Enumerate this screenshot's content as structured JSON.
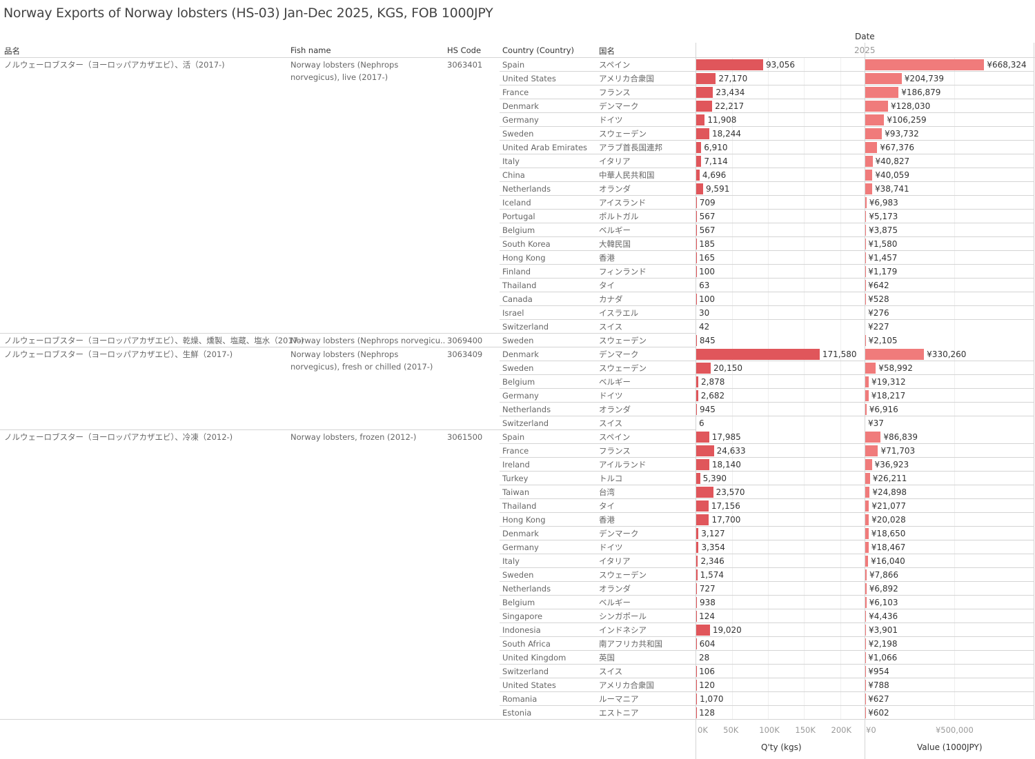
{
  "title": "Norway Exports of Norway lobsters (HS-03) Jan-Dec 2025, KGS, FOB 1000JPY",
  "headers": {
    "item": "品名",
    "fish": "Fish name",
    "hs": "HS Code",
    "country": "Country (Country)",
    "jp": "国名",
    "date": "Date",
    "year": "2025"
  },
  "axes": {
    "qty_title": "Q'ty (kgs)",
    "value_title": "Value (1000JPY)",
    "qty_ticks": [
      "0K",
      "50K",
      "100K",
      "150K",
      "200K"
    ],
    "qty_tick_values": [
      0,
      50000,
      100000,
      150000,
      200000
    ],
    "value_ticks": [
      "¥0",
      "¥500,000"
    ],
    "value_tick_values": [
      0,
      500000
    ],
    "qty_max": 235000,
    "value_max": 950000
  },
  "colors": {
    "qty": "#e0565b",
    "value": "#f07b7b"
  },
  "chart_data": {
    "type": "bar",
    "title": "Norway Exports of Norway lobsters (HS-03) Jan-Dec 2025, KGS, FOB 1000JPY",
    "series": [
      "Q'ty (kgs)",
      "Value (1000JPY)"
    ],
    "groups": [
      {
        "item": "ノルウェーロブスター（ヨーロッパアカザエビ）、活（2017-)",
        "fish": "Norway lobsters (Nephrops norvegicus), live (2017-)",
        "hs": "3063401",
        "rows": [
          [
            "Spain",
            "スペイン",
            93056,
            "93,056",
            668324,
            "¥668,324"
          ],
          [
            "United States",
            "アメリカ合衆国",
            27170,
            "27,170",
            204739,
            "¥204,739"
          ],
          [
            "France",
            "フランス",
            23434,
            "23,434",
            186879,
            "¥186,879"
          ],
          [
            "Denmark",
            "デンマーク",
            22217,
            "22,217",
            128030,
            "¥128,030"
          ],
          [
            "Germany",
            "ドイツ",
            11908,
            "11,908",
            106259,
            "¥106,259"
          ],
          [
            "Sweden",
            "スウェーデン",
            18244,
            "18,244",
            93732,
            "¥93,732"
          ],
          [
            "United Arab Emirates",
            "アラブ首長国連邦",
            6910,
            "6,910",
            67376,
            "¥67,376"
          ],
          [
            "Italy",
            "イタリア",
            7114,
            "7,114",
            40827,
            "¥40,827"
          ],
          [
            "China",
            "中華人民共和国",
            4696,
            "4,696",
            40059,
            "¥40,059"
          ],
          [
            "Netherlands",
            "オランダ",
            9591,
            "9,591",
            38741,
            "¥38,741"
          ],
          [
            "Iceland",
            "アイスランド",
            709,
            "709",
            6983,
            "¥6,983"
          ],
          [
            "Portugal",
            "ポルトガル",
            567,
            "567",
            5173,
            "¥5,173"
          ],
          [
            "Belgium",
            "ベルギー",
            567,
            "567",
            3875,
            "¥3,875"
          ],
          [
            "South Korea",
            "大韓民国",
            185,
            "185",
            1580,
            "¥1,580"
          ],
          [
            "Hong Kong",
            "香港",
            165,
            "165",
            1457,
            "¥1,457"
          ],
          [
            "Finland",
            "フィンランド",
            100,
            "100",
            1179,
            "¥1,179"
          ],
          [
            "Thailand",
            "タイ",
            63,
            "63",
            642,
            "¥642"
          ],
          [
            "Canada",
            "カナダ",
            100,
            "100",
            528,
            "¥528"
          ],
          [
            "Israel",
            "イスラエル",
            30,
            "30",
            276,
            "¥276"
          ],
          [
            "Switzerland",
            "スイス",
            42,
            "42",
            227,
            "¥227"
          ]
        ]
      },
      {
        "item": "ノルウェーロブスター（ヨーロッパアカザエビ）、乾燥、燻製、塩蔵、塩水（2017-)",
        "fish": "Norway lobsters (Nephrops norvegicu..",
        "hs": "3069400",
        "rows": [
          [
            "Sweden",
            "スウェーデン",
            845,
            "845",
            2105,
            "¥2,105"
          ]
        ]
      },
      {
        "item": "ノルウェーロブスター（ヨーロッパアカザエビ）、生鮮（2017-)",
        "fish": "Norway lobsters (Nephrops norvegicus), fresh or chilled (2017-)",
        "hs": "3063409",
        "rows": [
          [
            "Denmark",
            "デンマーク",
            171580,
            "171,580",
            330260,
            "¥330,260"
          ],
          [
            "Sweden",
            "スウェーデン",
            20150,
            "20,150",
            58992,
            "¥58,992"
          ],
          [
            "Belgium",
            "ベルギー",
            2878,
            "2,878",
            19312,
            "¥19,312"
          ],
          [
            "Germany",
            "ドイツ",
            2682,
            "2,682",
            18217,
            "¥18,217"
          ],
          [
            "Netherlands",
            "オランダ",
            945,
            "945",
            6916,
            "¥6,916"
          ],
          [
            "Switzerland",
            "スイス",
            6,
            "6",
            37,
            "¥37"
          ]
        ]
      },
      {
        "item": "ノルウェーロブスター（ヨーロッパアカザエビ）、冷凍（2012-)",
        "fish": "Norway lobsters, frozen (2012-)",
        "hs": "3061500",
        "rows": [
          [
            "Spain",
            "スペイン",
            17985,
            "17,985",
            86839,
            "¥86,839"
          ],
          [
            "France",
            "フランス",
            24633,
            "24,633",
            71703,
            "¥71,703"
          ],
          [
            "Ireland",
            "アイルランド",
            18140,
            "18,140",
            36923,
            "¥36,923"
          ],
          [
            "Turkey",
            "トルコ",
            5390,
            "5,390",
            26211,
            "¥26,211"
          ],
          [
            "Taiwan",
            "台湾",
            23570,
            "23,570",
            24898,
            "¥24,898"
          ],
          [
            "Thailand",
            "タイ",
            17156,
            "17,156",
            21077,
            "¥21,077"
          ],
          [
            "Hong Kong",
            "香港",
            17700,
            "17,700",
            20028,
            "¥20,028"
          ],
          [
            "Denmark",
            "デンマーク",
            3127,
            "3,127",
            18650,
            "¥18,650"
          ],
          [
            "Germany",
            "ドイツ",
            3354,
            "3,354",
            18467,
            "¥18,467"
          ],
          [
            "Italy",
            "イタリア",
            2346,
            "2,346",
            16040,
            "¥16,040"
          ],
          [
            "Sweden",
            "スウェーデン",
            1574,
            "1,574",
            7866,
            "¥7,866"
          ],
          [
            "Netherlands",
            "オランダ",
            727,
            "727",
            6892,
            "¥6,892"
          ],
          [
            "Belgium",
            "ベルギー",
            938,
            "938",
            6103,
            "¥6,103"
          ],
          [
            "Singapore",
            "シンガポール",
            124,
            "124",
            4436,
            "¥4,436"
          ],
          [
            "Indonesia",
            "インドネシア",
            19020,
            "19,020",
            3901,
            "¥3,901"
          ],
          [
            "South Africa",
            "南アフリカ共和国",
            604,
            "604",
            2198,
            "¥2,198"
          ],
          [
            "United Kingdom",
            "英国",
            28,
            "28",
            1066,
            "¥1,066"
          ],
          [
            "Switzerland",
            "スイス",
            106,
            "106",
            954,
            "¥954"
          ],
          [
            "United States",
            "アメリカ合衆国",
            120,
            "120",
            788,
            "¥788"
          ],
          [
            "Romania",
            "ルーマニア",
            1070,
            "1,070",
            627,
            "¥627"
          ],
          [
            "Estonia",
            "エストニア",
            128,
            "128",
            602,
            "¥602"
          ]
        ]
      }
    ]
  }
}
